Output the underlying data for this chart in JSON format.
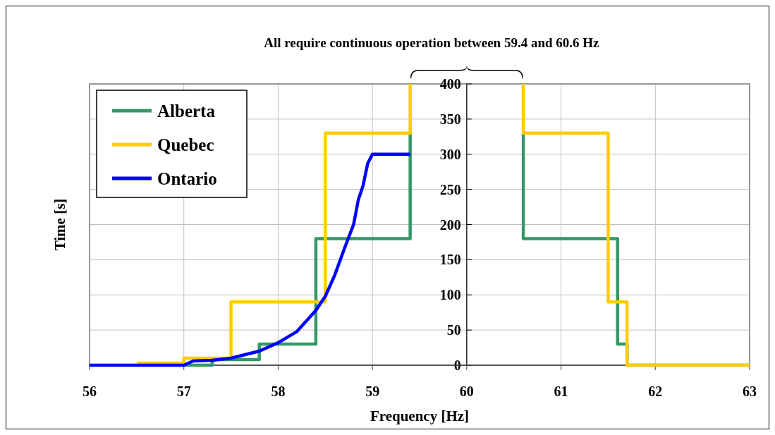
{
  "chart_data": {
    "type": "line",
    "xlabel": "Frequency [Hz]",
    "ylabel": "Time [s]",
    "xlim": [
      56,
      63
    ],
    "xticks": [
      56,
      57,
      58,
      59,
      60,
      61,
      62,
      63
    ],
    "ylim": [
      0,
      400
    ],
    "yticks": [
      0,
      50,
      100,
      150,
      200,
      250,
      300,
      350,
      400
    ],
    "grid": true,
    "legend": "top left",
    "line_style": "solid",
    "marker": "none",
    "annotations": [
      "All require continuous operation between 59.4 and 60.6 Hz"
    ],
    "series": [
      {
        "name": "Alberta",
        "color": "#339966",
        "x": [
          57,
          57.3,
          57.3,
          57.8,
          57.8,
          58.4,
          58.4,
          59.4,
          59.4,
          60,
          60.6,
          60.6,
          61.6,
          61.6,
          61.7,
          61.7,
          63
        ],
        "values": [
          0,
          0,
          8,
          8,
          30,
          30,
          180,
          180,
          330,
          null,
          330,
          180,
          180,
          30,
          30,
          0,
          0
        ]
      },
      {
        "name": "Quebec",
        "color": "#ffcc00",
        "x": [
          56.5,
          57,
          57,
          57.5,
          57.5,
          58.5,
          58.5,
          59.4,
          59.4,
          60,
          60.6,
          60.6,
          61.5,
          61.5,
          61.7,
          61.7,
          63
        ],
        "values": [
          3,
          3,
          10,
          10,
          90,
          90,
          330,
          330,
          400,
          null,
          400,
          330,
          330,
          90,
          90,
          0,
          0
        ]
      },
      {
        "name": "Ontario",
        "color": "#0000ff",
        "x": [
          56,
          57,
          57.1,
          57.3,
          57.5,
          57.8,
          58,
          58.2,
          58.4,
          58.5,
          58.6,
          58.7,
          58.8,
          58.85,
          58.9,
          58.95,
          59,
          59.4
        ],
        "values": [
          0,
          0,
          6,
          7,
          10,
          20,
          32,
          48,
          78,
          98,
          128,
          165,
          200,
          235,
          255,
          287,
          300,
          300
        ]
      }
    ]
  }
}
